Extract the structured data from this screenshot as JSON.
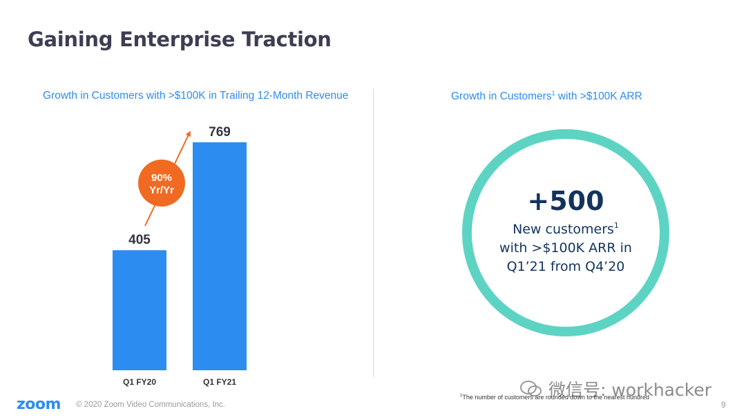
{
  "slide": {
    "title": "Gaining Enterprise Traction",
    "page_number": "9"
  },
  "left_panel": {
    "subtitle": "Growth in Customers with >$100K in Trailing 12-Month Revenue"
  },
  "right_panel": {
    "subtitle": "Growth in Customers",
    "subtitle_sup": "1",
    "subtitle_tail": " with >$100K ARR",
    "headline": "+500",
    "line1": "New customers",
    "line1_sup": "1",
    "line2": "with >$100K ARR in",
    "line3": "Q1’21 from Q4’20",
    "ring_color": "#5dd4c3"
  },
  "chart_data": {
    "type": "bar",
    "categories": [
      "Q1 FY20",
      "Q1 FY21"
    ],
    "values": [
      405,
      769
    ],
    "data_labels": [
      "405",
      "769"
    ],
    "ylim": [
      0,
      800
    ],
    "grid": false,
    "bar_color": "#2d8cf0",
    "annotation": {
      "line1": "90%",
      "line2": "Yr/Yr",
      "color": "#f06a22"
    }
  },
  "footer": {
    "logo": "zoom",
    "copyright": "© 2020 Zoom Video Communications, Inc.",
    "footnote_sup": "1",
    "footnote": "The number of customers are rounded down to the nearest hundred",
    "watermark_icon": "wechat-icon",
    "watermark_text": "微信号: workhacker"
  }
}
